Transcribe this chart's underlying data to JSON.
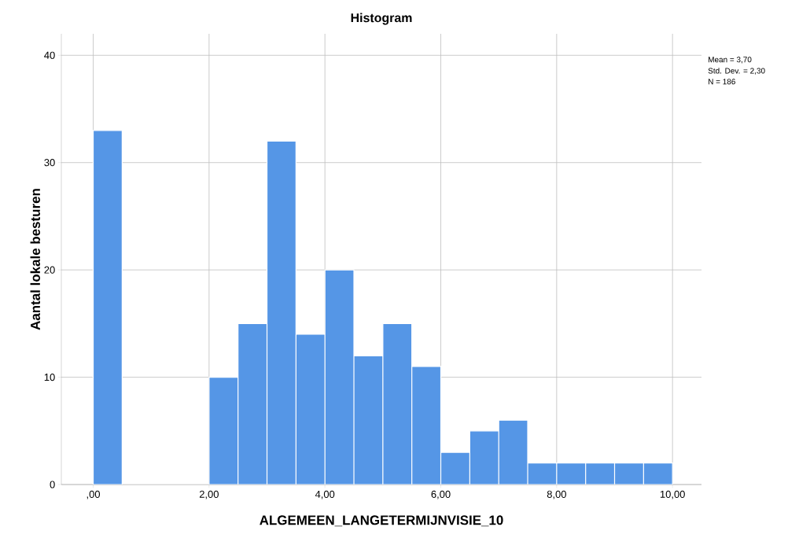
{
  "chart_data": {
    "type": "histogram",
    "title": "Histogram",
    "xlabel": "ALGEMEEN_LANGETERMIJNVISIE_10",
    "ylabel": "Aantal lokale besturen",
    "bins": [
      0,
      0.5,
      1,
      1.5,
      2,
      2.5,
      3,
      3.5,
      4,
      4.5,
      5,
      5.5,
      6,
      6.5,
      7,
      7.5,
      8,
      8.5,
      9,
      9.5,
      10
    ],
    "values": [
      33,
      0,
      0,
      0,
      10,
      15,
      32,
      14,
      20,
      12,
      15,
      11,
      3,
      5,
      6,
      2,
      2,
      2,
      2,
      2
    ],
    "color": "#5596e6",
    "xlim": [
      -0.55,
      10.5
    ],
    "ylim": [
      0,
      42
    ],
    "xticks": [
      {
        "value": 0,
        "label": ",00"
      },
      {
        "value": 2,
        "label": "2,00"
      },
      {
        "value": 4,
        "label": "4,00"
      },
      {
        "value": 6,
        "label": "6,00"
      },
      {
        "value": 8,
        "label": "8,00"
      },
      {
        "value": 10,
        "label": "10,00"
      }
    ],
    "yticks": [
      0,
      10,
      20,
      30,
      40
    ],
    "grid": true,
    "annotations": [
      "Mean = 3,70",
      "Std. Dev. = 2,30",
      "N = 186"
    ]
  }
}
